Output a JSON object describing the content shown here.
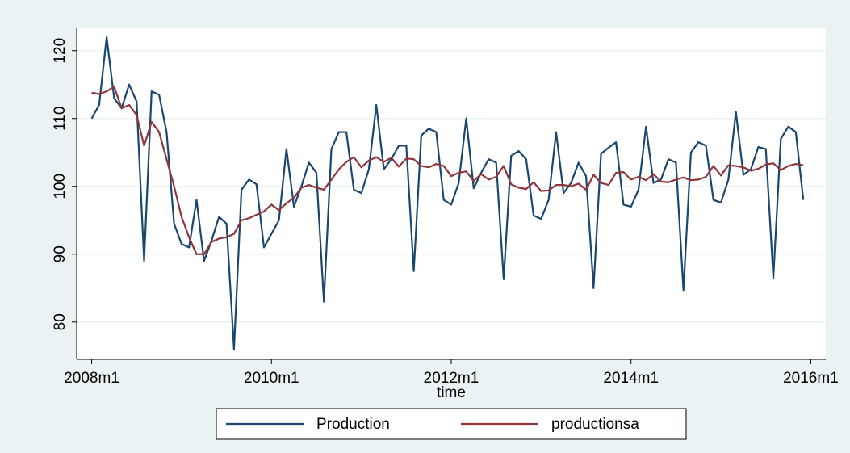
{
  "chart_data": {
    "type": "line",
    "x": [
      "2008m1",
      "2008m2",
      "2008m3",
      "2008m4",
      "2008m5",
      "2008m6",
      "2008m7",
      "2008m8",
      "2008m9",
      "2008m10",
      "2008m11",
      "2008m12",
      "2009m1",
      "2009m2",
      "2009m3",
      "2009m4",
      "2009m5",
      "2009m6",
      "2009m7",
      "2009m8",
      "2009m9",
      "2009m10",
      "2009m11",
      "2009m12",
      "2010m1",
      "2010m2",
      "2010m3",
      "2010m4",
      "2010m5",
      "2010m6",
      "2010m7",
      "2010m8",
      "2010m9",
      "2010m10",
      "2010m11",
      "2010m12",
      "2011m1",
      "2011m2",
      "2011m3",
      "2011m4",
      "2011m5",
      "2011m6",
      "2011m7",
      "2011m8",
      "2011m9",
      "2011m10",
      "2011m11",
      "2011m12",
      "2012m1",
      "2012m2",
      "2012m3",
      "2012m4",
      "2012m5",
      "2012m6",
      "2012m7",
      "2012m8",
      "2012m9",
      "2012m10",
      "2012m11",
      "2012m12",
      "2013m1",
      "2013m2",
      "2013m3",
      "2013m4",
      "2013m5",
      "2013m6",
      "2013m7",
      "2013m8",
      "2013m9",
      "2013m10",
      "2013m11",
      "2013m12",
      "2014m1",
      "2014m2",
      "2014m3",
      "2014m4",
      "2014m5",
      "2014m6",
      "2014m7",
      "2014m8",
      "2014m9",
      "2014m10",
      "2014m11",
      "2014m12",
      "2015m1",
      "2015m2",
      "2015m3",
      "2015m4",
      "2015m5",
      "2015m6",
      "2015m7",
      "2015m8",
      "2015m9",
      "2015m10",
      "2015m11",
      "2015m12"
    ],
    "series": [
      {
        "name": "Production",
        "color": "#1a476f",
        "values": [
          110,
          112,
          122,
          113,
          111.5,
          115,
          112.5,
          89,
          114,
          113.5,
          108,
          94.5,
          91.5,
          91,
          98,
          89,
          92,
          95.5,
          94.5,
          76,
          99.5,
          101,
          100.3,
          91,
          93,
          95,
          105.5,
          97,
          100,
          103.5,
          102,
          83,
          105.5,
          108,
          108,
          99.5,
          99,
          102.5,
          112,
          102.5,
          104,
          106,
          106,
          87.5,
          107.5,
          108.5,
          108,
          98,
          97.3,
          100.5,
          110,
          99.7,
          102,
          104,
          103.5,
          86.3,
          104.5,
          105.2,
          104,
          95.7,
          95.2,
          98,
          108,
          99,
          100.5,
          103.5,
          101.5,
          85,
          104.8,
          105.7,
          106.5,
          97.3,
          97,
          99.5,
          108.8,
          100.5,
          101,
          104,
          103.5,
          84.7,
          105,
          106.5,
          106,
          98,
          97.6,
          101,
          111,
          101.7,
          102.5,
          105.8,
          105.5,
          86.5,
          107,
          108.8,
          108,
          98
        ]
      },
      {
        "name": "productionsa",
        "color": "#90353b",
        "values": [
          113.8,
          113.6,
          114,
          114.7,
          111.5,
          112,
          110.5,
          106,
          109.5,
          108,
          104,
          100,
          95.5,
          92.5,
          90,
          90,
          91.8,
          92.3,
          92.5,
          93,
          95,
          95.3,
          95.8,
          96.3,
          97.3,
          96.5,
          97.5,
          98.3,
          99.8,
          100.2,
          99.8,
          99.5,
          101,
          102.5,
          103.6,
          104.3,
          102.8,
          103.8,
          104.3,
          103.6,
          104.2,
          102.9,
          104.1,
          104,
          103,
          102.8,
          103.3,
          103,
          101.5,
          102,
          102.2,
          100.8,
          101.8,
          101,
          101.4,
          103,
          100.3,
          99.8,
          99.6,
          100.6,
          99.3,
          99.4,
          100.2,
          100.2,
          100,
          100.4,
          99.5,
          101.7,
          100.5,
          100.2,
          102,
          102.1,
          101,
          101.4,
          100.9,
          101.8,
          100.7,
          100.6,
          101,
          101.3,
          100.9,
          101,
          101.4,
          103,
          101.6,
          103.1,
          103,
          102.8,
          102.3,
          102.6,
          103.2,
          103.4,
          102.4,
          103,
          103.3,
          103.1
        ]
      }
    ],
    "x_label": "time",
    "xlim": [
      "2007m11",
      "2016m3"
    ],
    "xticks": [
      "2008m1",
      "2010m1",
      "2012m1",
      "2014m1",
      "2016m1"
    ],
    "ylim": [
      74.5,
      123.3
    ],
    "yticks": [
      80,
      90,
      100,
      110,
      120
    ],
    "grid": true,
    "legend": "bottom"
  }
}
